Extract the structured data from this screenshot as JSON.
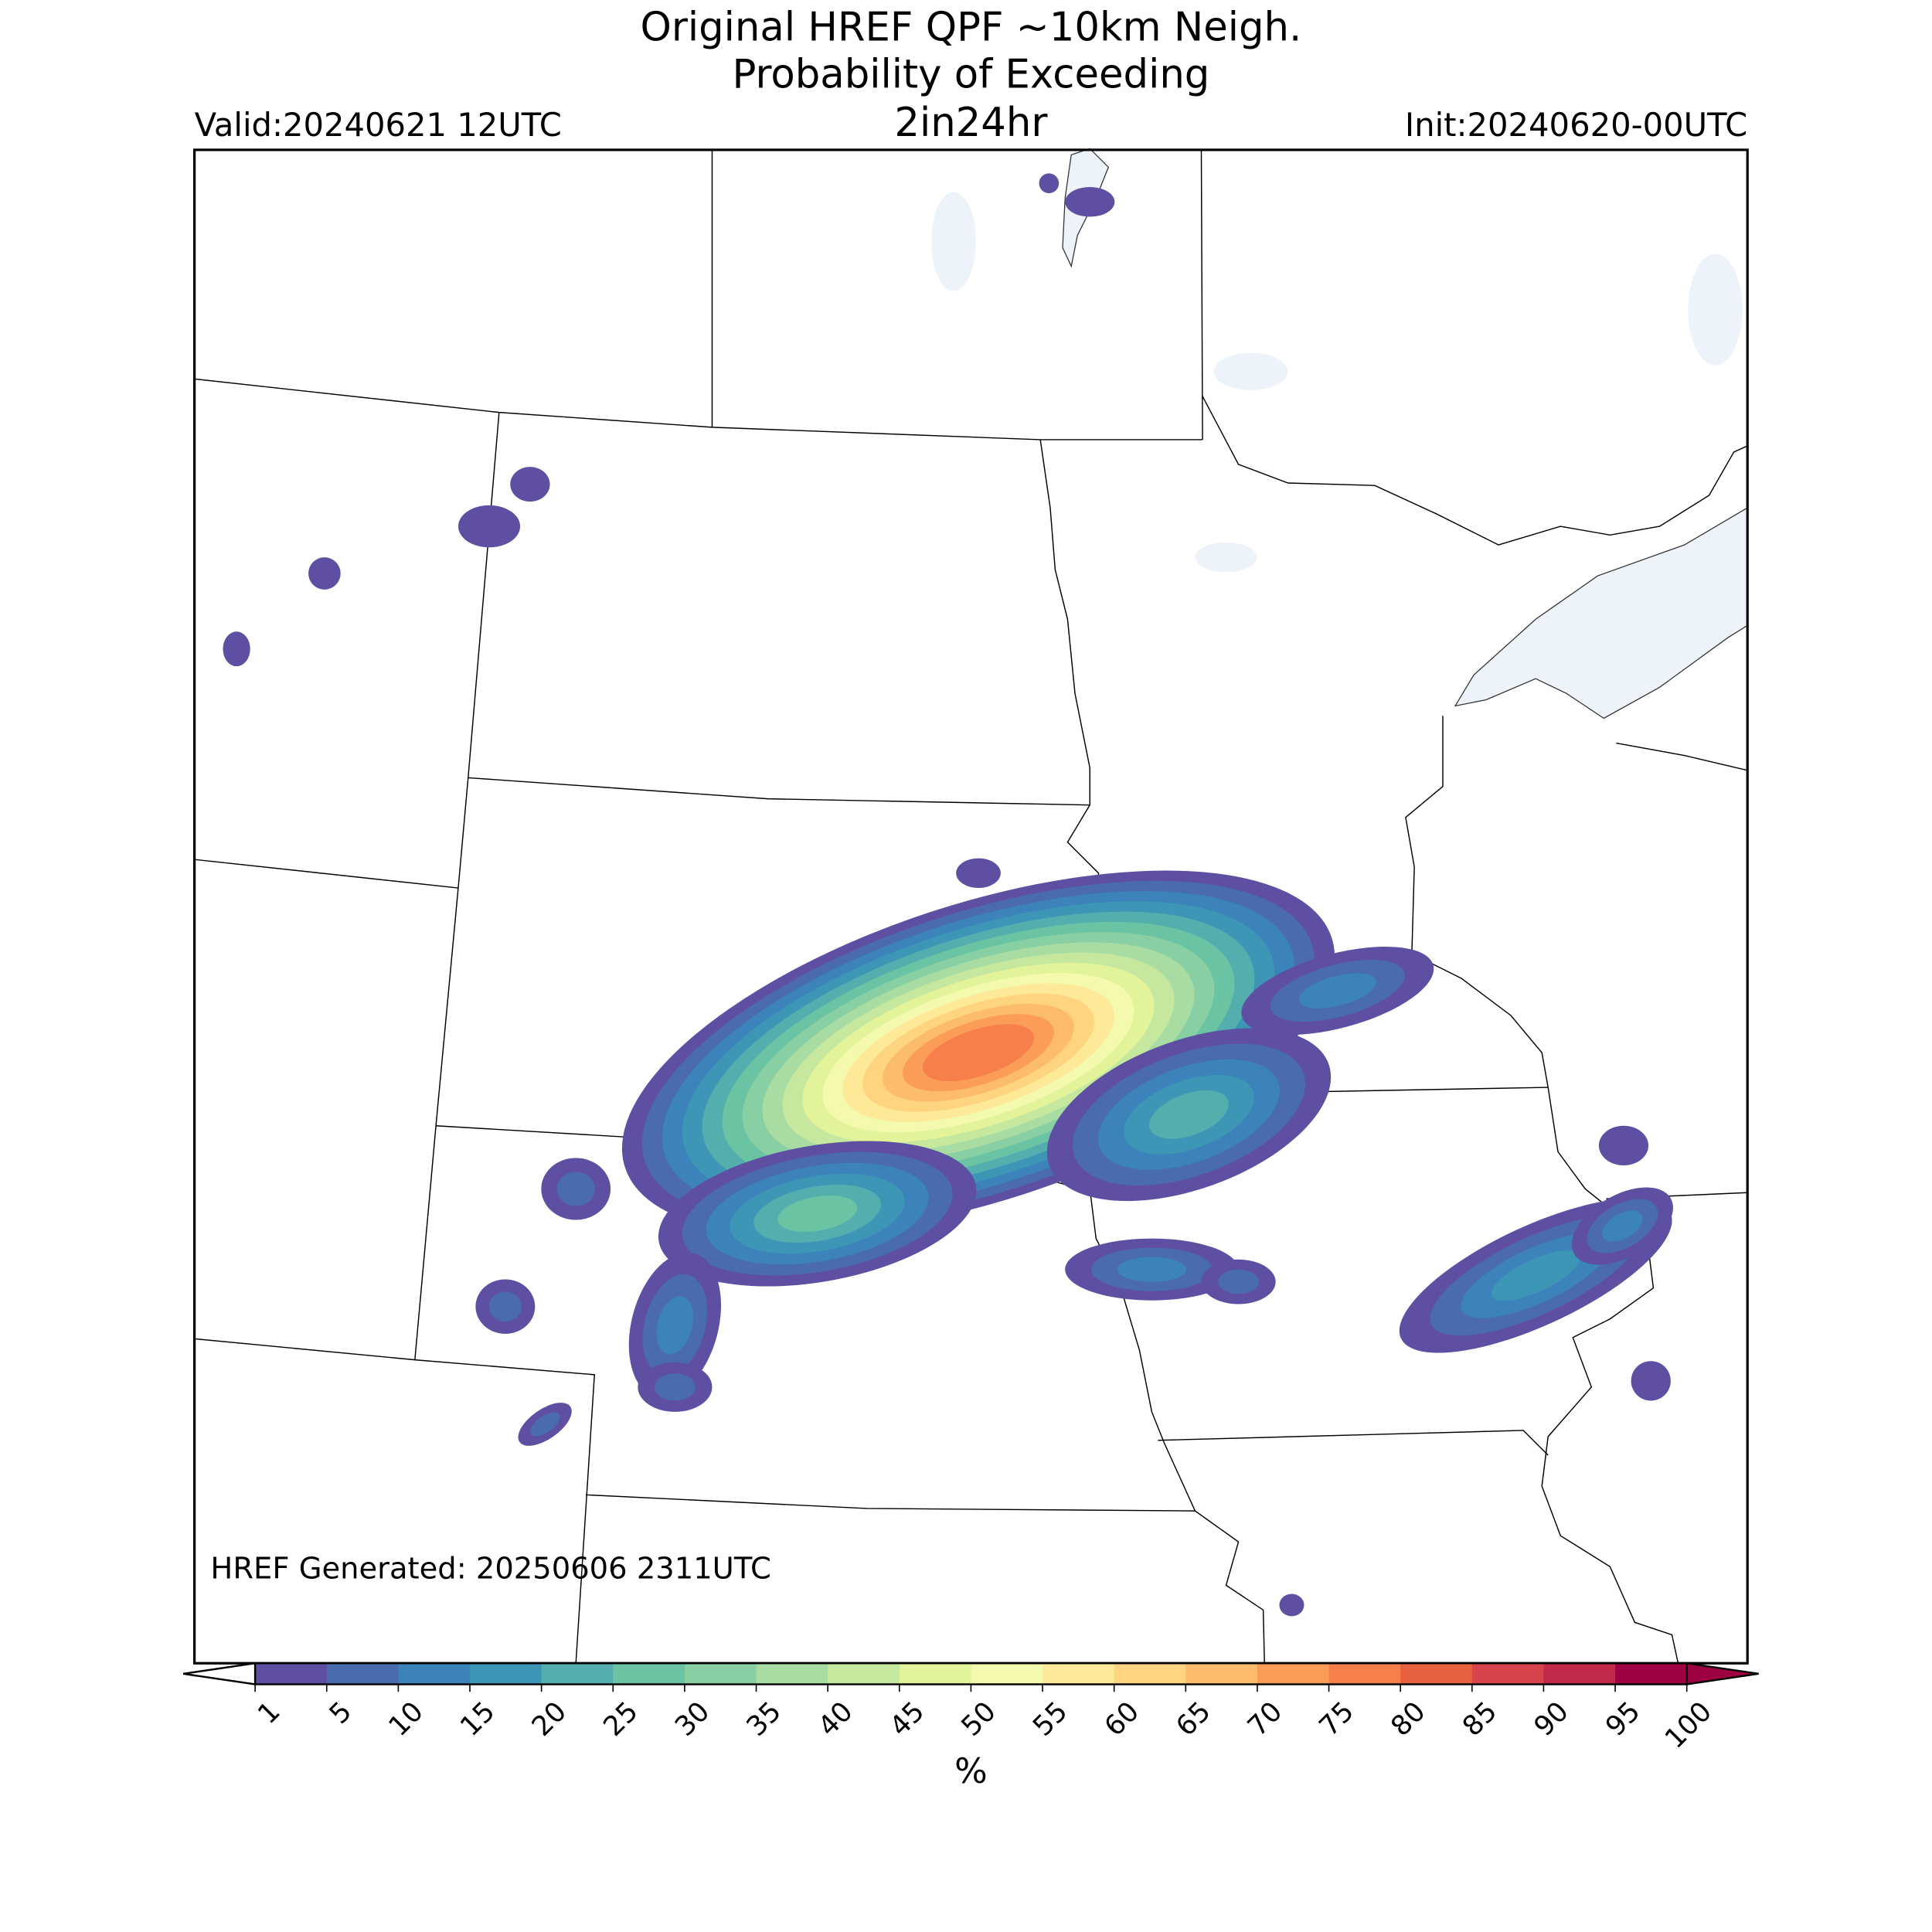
{
  "title": [
    "Original HREF QPF ~10km Neigh.",
    "Probability of Exceeding",
    "2in24hr"
  ],
  "valid": "Valid:20240621 12UTC",
  "init": "Init:20240620-00UTC",
  "generated": "HREF Generated: 20250606 2311UTC",
  "colorbar": {
    "ticks": [
      1,
      5,
      10,
      15,
      20,
      25,
      30,
      35,
      40,
      45,
      50,
      55,
      60,
      65,
      70,
      75,
      80,
      85,
      90,
      95,
      100
    ],
    "colors": [
      "#5e4fa2",
      "#4a6bae",
      "#3b83ba",
      "#3e96b7",
      "#54aead",
      "#6ac4a4",
      "#88cfa4",
      "#a9dca3",
      "#c6e89e",
      "#e2f39a",
      "#f4faad",
      "#fee999",
      "#fed481",
      "#fdbb6c",
      "#fb9d59",
      "#f67f4b",
      "#e9623f",
      "#d8434d",
      "#c12a4a",
      "#9e0142"
    ],
    "label": "%"
  }
}
